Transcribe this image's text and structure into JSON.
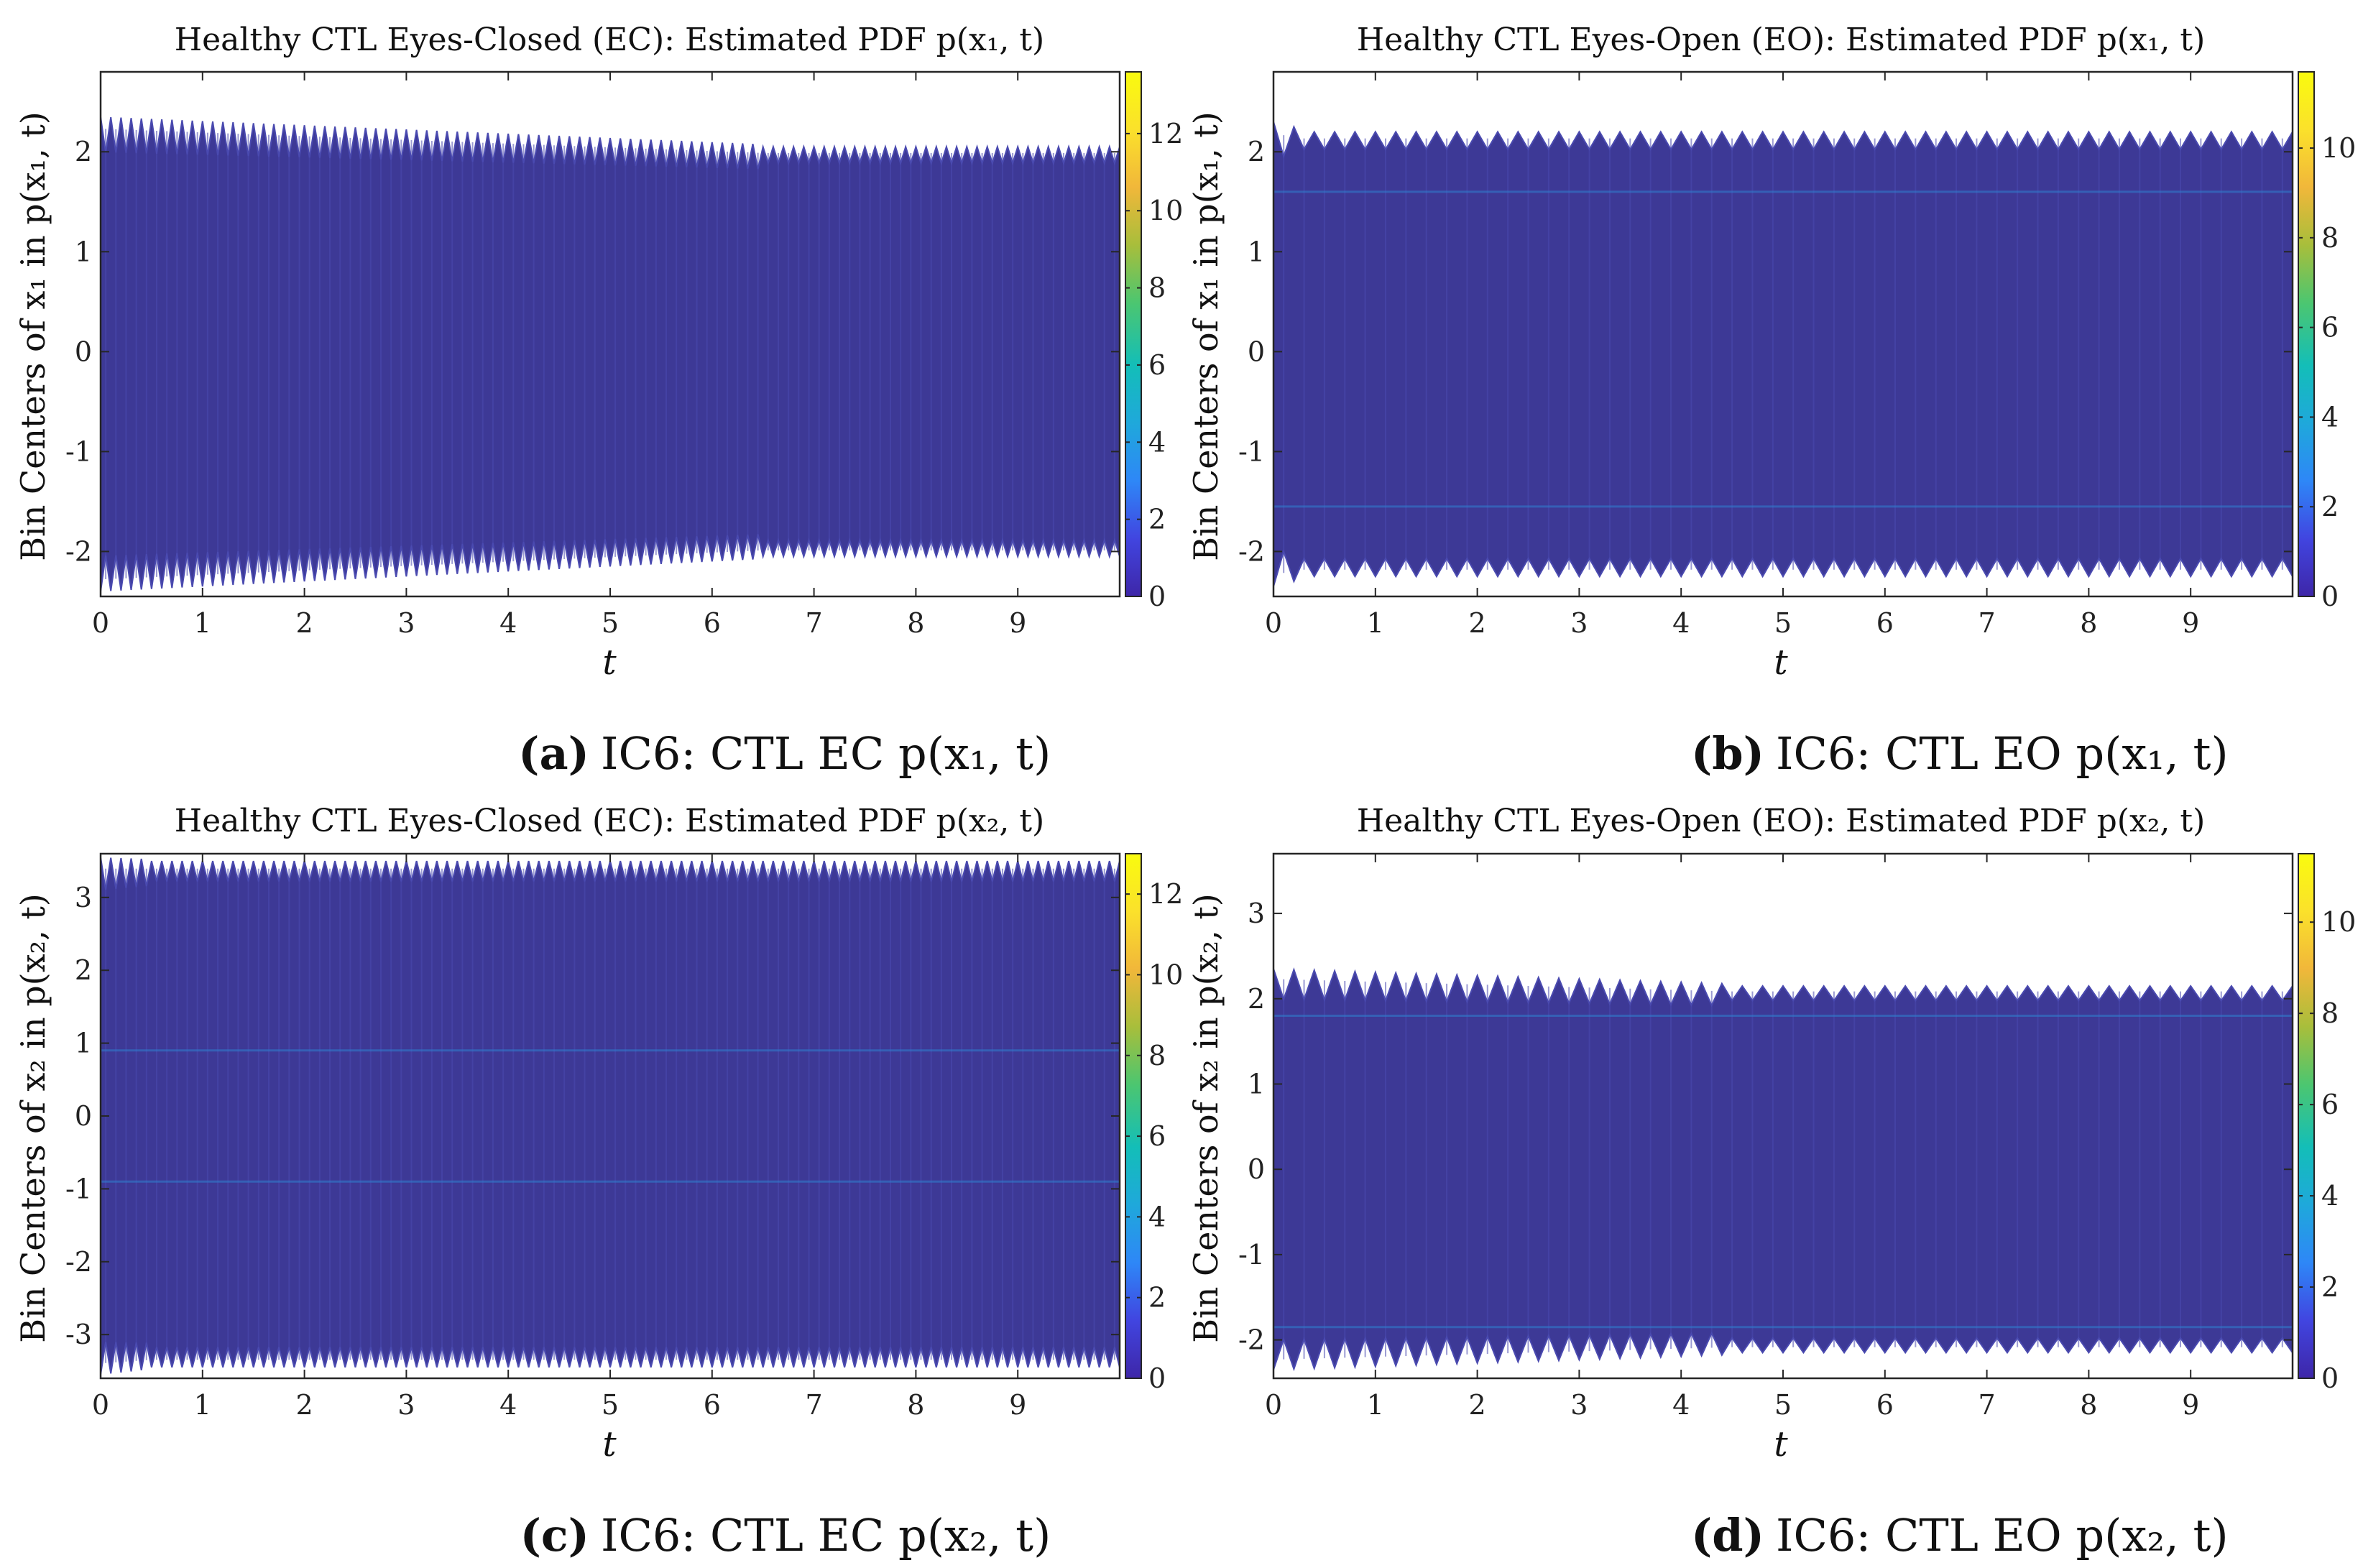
{
  "chart_data": [
    {
      "type": "heatmap",
      "id": "a",
      "title": "Healthy CTL Eyes-Closed (EC): Estimated PDF p(x₁, t)",
      "xlabel": "t",
      "ylabel": "Bin Centers of x₁ in p(x₁, t)",
      "xlim": [
        0,
        10
      ],
      "ylim": [
        -2.45,
        2.8
      ],
      "x_ticks": [
        0,
        1,
        2,
        3,
        4,
        5,
        6,
        7,
        8,
        9
      ],
      "y_ticks": [
        -2,
        -1,
        0,
        1,
        2
      ],
      "colorbar_range": [
        0,
        13.6
      ],
      "colorbar_ticks": [
        0,
        2,
        4,
        6,
        8,
        10,
        12
      ],
      "envelope": {
        "upper_initial": 2.3,
        "upper_final": 2.05,
        "lower_initial": -2.35,
        "lower_final": -2.05,
        "settle_t": 6.5,
        "cycles": 100
      },
      "bands": [],
      "caption_label": "(a)",
      "caption_text": "IC6: CTL EC p(x₁, t)"
    },
    {
      "type": "heatmap",
      "id": "b",
      "title": "Healthy CTL Eyes-Open (EO): Estimated PDF p(x₁, t)",
      "xlabel": "t",
      "ylabel": "Bin Centers of x₁ in p(x₁, t)",
      "xlim": [
        0,
        10
      ],
      "ylim": [
        -2.45,
        2.8
      ],
      "x_ticks": [
        0,
        1,
        2,
        3,
        4,
        5,
        6,
        7,
        8,
        9
      ],
      "y_ticks": [
        -2,
        -1,
        0,
        1,
        2
      ],
      "colorbar_range": [
        0,
        11.7
      ],
      "colorbar_ticks": [
        0,
        2,
        4,
        6,
        8,
        10
      ],
      "envelope": {
        "upper_initial": 2.25,
        "upper_final": 2.2,
        "lower_initial": -2.3,
        "lower_final": -2.25,
        "settle_t": 0.3,
        "cycles": 50
      },
      "bands": [
        1.6,
        -1.55
      ],
      "caption_label": "(b)",
      "caption_text": "IC6: CTL EO p(x₁, t)"
    },
    {
      "type": "heatmap",
      "id": "c",
      "title": "Healthy CTL Eyes-Closed (EC): Estimated PDF p(x₂, t)",
      "xlabel": "t",
      "ylabel": "Bin Centers of x₂ in p(x₂, t)",
      "xlim": [
        0,
        10
      ],
      "ylim": [
        -3.6,
        3.6
      ],
      "x_ticks": [
        0,
        1,
        2,
        3,
        4,
        5,
        6,
        7,
        8,
        9
      ],
      "y_ticks": [
        -3,
        -2,
        -1,
        0,
        1,
        2,
        3
      ],
      "colorbar_range": [
        0,
        13
      ],
      "colorbar_ticks": [
        0,
        2,
        4,
        6,
        8,
        10,
        12
      ],
      "envelope": {
        "upper_initial": 3.5,
        "upper_final": 3.5,
        "lower_initial": -3.5,
        "lower_final": -3.45,
        "settle_t": 0.5,
        "cycles": 100
      },
      "bands": [
        0.9,
        -0.9
      ],
      "caption_label": "(c)",
      "caption_text": "IC6: CTL EC p(x₂, t)"
    },
    {
      "type": "heatmap",
      "id": "d",
      "title": "Healthy CTL Eyes-Open (EO): Estimated PDF p(x₂, t)",
      "xlabel": "t",
      "ylabel": "Bin Centers of x₂ in p(x₂, t)",
      "xlim": [
        0,
        10
      ],
      "ylim": [
        -2.45,
        3.7
      ],
      "x_ticks": [
        0,
        1,
        2,
        3,
        4,
        5,
        6,
        7,
        8,
        9
      ],
      "y_ticks": [
        -2,
        -1,
        0,
        1,
        2,
        3
      ],
      "colorbar_range": [
        0,
        11.5
      ],
      "colorbar_ticks": [
        0,
        2,
        4,
        6,
        8,
        10
      ],
      "envelope": {
        "upper_initial": 2.3,
        "upper_final": 2.15,
        "lower_initial": -2.3,
        "lower_final": -2.15,
        "settle_t": 4.5,
        "cycles": 50
      },
      "bands": [
        1.8,
        -1.85
      ],
      "caption_label": "(d)",
      "caption_text": "IC6: CTL EO p(x₂, t)"
    }
  ],
  "colors": {
    "fill": "#3d3996",
    "fill_light": "#4a4ab0",
    "band": "#2f7fd0",
    "axis": "#262626",
    "colormap": [
      "#3e26a8",
      "#4145e0",
      "#2e87f7",
      "#1fa8db",
      "#13beb8",
      "#4cc670",
      "#a8be3b",
      "#f1b73a",
      "#fbe12b",
      "#f9fb0e"
    ]
  }
}
